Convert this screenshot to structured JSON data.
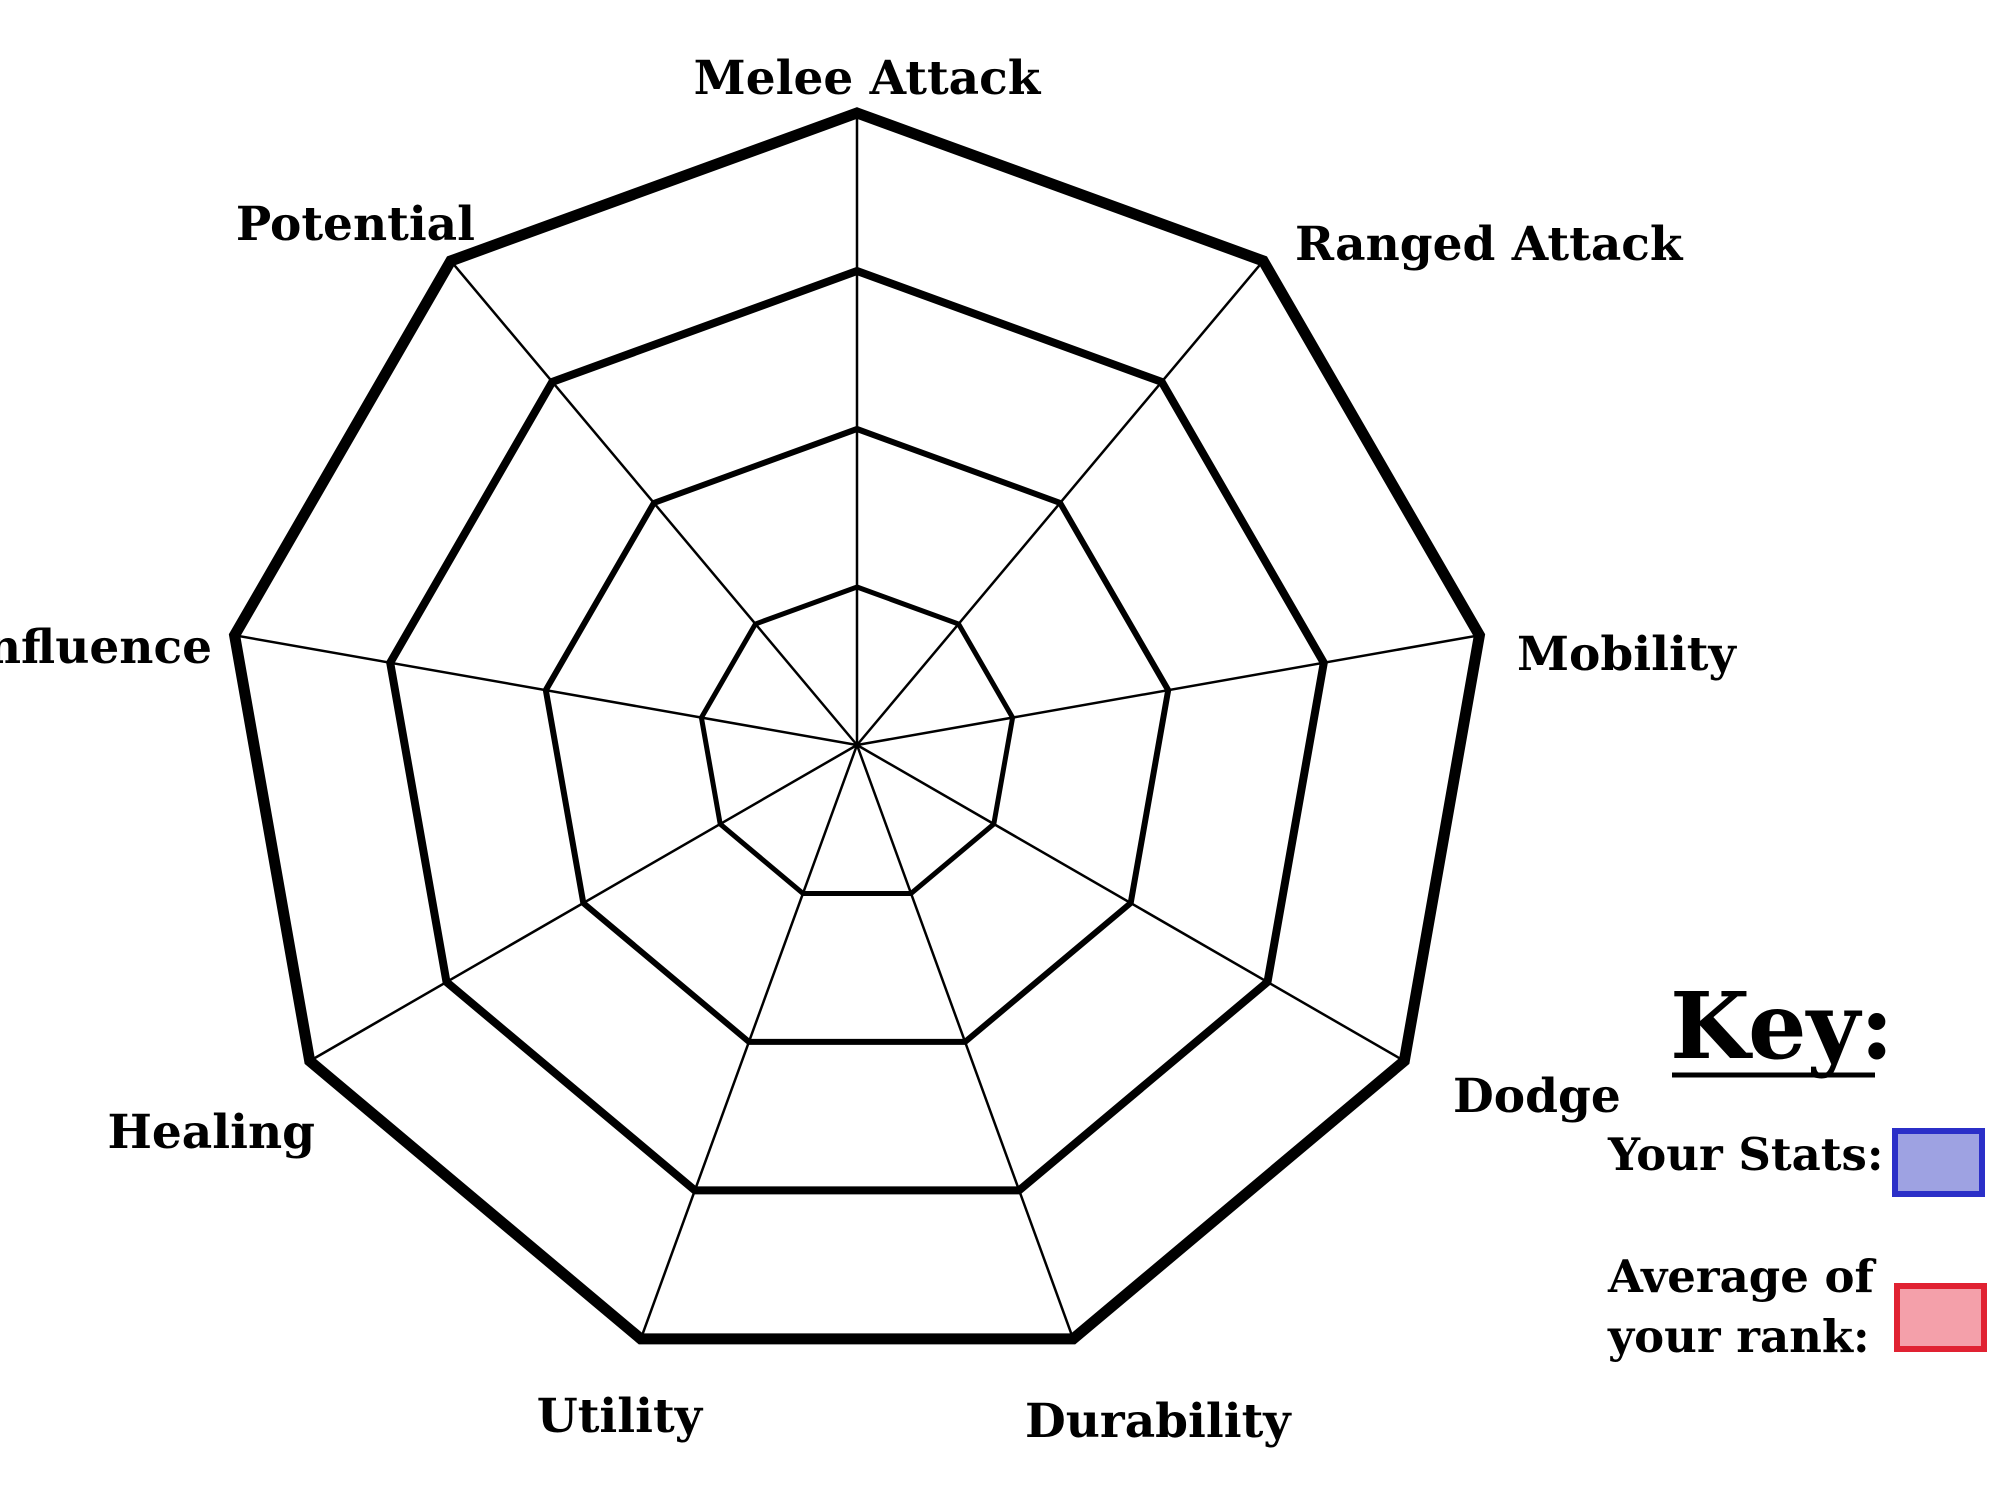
{
  "chart_data": {
    "type": "radar",
    "axes": [
      "Melee Attack",
      "Ranged Attack",
      "Mobility",
      "Dodge",
      "Durability",
      "Utility",
      "Healing",
      "Influence",
      "Potential"
    ],
    "rings": 4,
    "series": []
  },
  "key": {
    "title": "Key:",
    "items": [
      {
        "label": "Your Stats:",
        "fill": "#9ea2e2",
        "stroke": "#2b2fc8"
      },
      {
        "label_lines": [
          "Average of",
          "your rank:"
        ],
        "fill": "#f4a0aa",
        "stroke": "#e02232"
      }
    ]
  }
}
